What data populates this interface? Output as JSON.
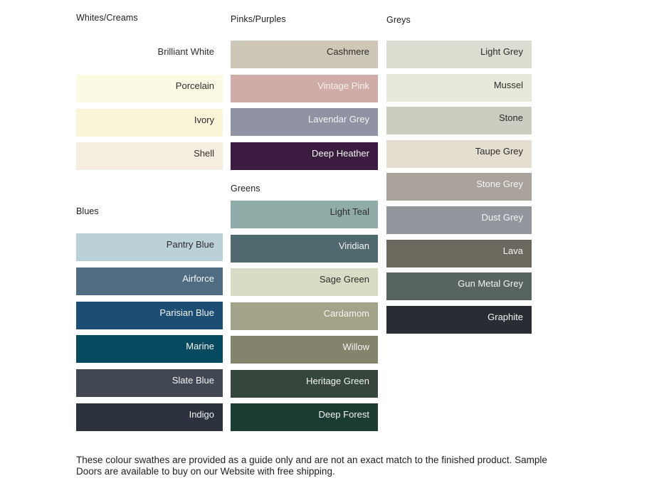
{
  "page": {
    "footer_line1": "These colour swathes are provided as a guide only and are not an exact match to the finished product.  Sample",
    "footer_line2": "Doors are available to buy on our Website with free shipping."
  },
  "columns": [
    {
      "sections": [
        {
          "title": "Whites/Creams",
          "swatches": [
            {
              "name": "Brilliant White",
              "color": "#FFFFFF",
              "text_color": "#2D2D2D"
            },
            {
              "name": "Porcelain",
              "color": "#FCFAE3",
              "text_color": "#2D2D2D"
            },
            {
              "name": "Ivory",
              "color": "#FAF5D8",
              "text_color": "#2D2D2D"
            },
            {
              "name": "Shell",
              "color": "#F5EEE0",
              "text_color": "#2D2D2D"
            }
          ]
        },
        {
          "title": "Blues",
          "swatches": [
            {
              "name": "Pantry Blue",
              "color": "#BBD1D8",
              "text_color": "#2D2D2D"
            },
            {
              "name": "Airforce",
              "color": "#506C83",
              "text_color": "#F4F4F2"
            },
            {
              "name": "Parisian Blue",
              "color": "#1C4E74",
              "text_color": "#F4F4F2"
            },
            {
              "name": "Marine",
              "color": "#07495E",
              "text_color": "#F4F4F2"
            },
            {
              "name": "Slate Blue",
              "color": "#424754",
              "text_color": "#F4F4F2"
            },
            {
              "name": "Indigo",
              "color": "#2B313D",
              "text_color": "#F4F4F2"
            }
          ]
        }
      ]
    },
    {
      "sections": [
        {
          "title": "Pinks/Purples",
          "swatches": [
            {
              "name": "Cashmere",
              "color": "#CDC7B7",
              "text_color": "#2D2D2D"
            },
            {
              "name": "Vintage Pink",
              "color": "#D0ACA8",
              "text_color": "#F6F2F0"
            },
            {
              "name": "Lavendar Grey",
              "color": "#8F93A4",
              "text_color": "#F4F4F2"
            },
            {
              "name": "Deep Heather",
              "color": "#3B1C40",
              "text_color": "#F4F4F2"
            }
          ]
        },
        {
          "title": "Greens",
          "swatches": [
            {
              "name": "Light Teal",
              "color": "#8FACA9",
              "text_color": "#2D2D2D"
            },
            {
              "name": "Viridian",
              "color": "#50696E",
              "text_color": "#F4F4F2"
            },
            {
              "name": "Sage Green",
              "color": "#D9DCC5",
              "text_color": "#2D2D2D"
            },
            {
              "name": "Cardamom",
              "color": "#A2A389",
              "text_color": "#F4F4F2"
            },
            {
              "name": "Willow",
              "color": "#84836B",
              "text_color": "#F4F4F2"
            },
            {
              "name": "Heritage Green",
              "color": "#36463C",
              "text_color": "#F4F4F2"
            },
            {
              "name": "Deep Forest",
              "color": "#1B3B33",
              "text_color": "#F4F4F2"
            }
          ]
        }
      ]
    },
    {
      "sections": [
        {
          "title": "Greys",
          "swatches": [
            {
              "name": "Light Grey",
              "color": "#DBDDD1",
              "text_color": "#2D2D2D"
            },
            {
              "name": "Mussel",
              "color": "#E7E9DA",
              "text_color": "#2D2D2D"
            },
            {
              "name": "Stone",
              "color": "#CACDBF",
              "text_color": "#2D2D2D"
            },
            {
              "name": "Taupe Grey",
              "color": "#E4DED1",
              "text_color": "#2D2D2D"
            },
            {
              "name": "Stone Grey",
              "color": "#A9A39B",
              "text_color": "#F4F4F2"
            },
            {
              "name": "Dust Grey",
              "color": "#94969E",
              "text_color": "#F4F4F2"
            },
            {
              "name": "Lava",
              "color": "#6C685E",
              "text_color": "#F4F4F2"
            },
            {
              "name": "Gun Metal Grey",
              "color": "#586462",
              "text_color": "#F4F4F2"
            },
            {
              "name": "Graphite",
              "color": "#282D33",
              "text_color": "#F4F4F2"
            }
          ]
        }
      ]
    }
  ]
}
